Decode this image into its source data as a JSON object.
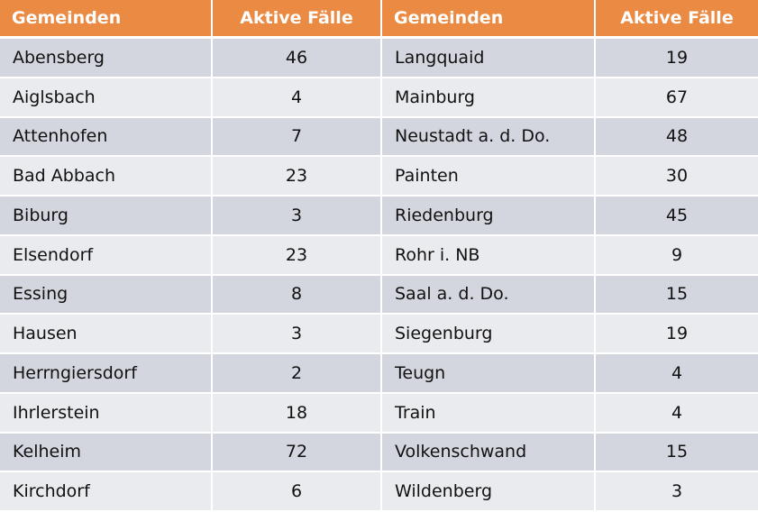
{
  "header": {
    "col1": "Gemeinden",
    "col2": "Aktive Fälle",
    "col3": "Gemeinden",
    "col4": "Aktive Fälle"
  },
  "colors": {
    "header_bg": "#ea8a43",
    "row_odd": "#d4d6df",
    "row_even": "#eaebef"
  },
  "rows": [
    {
      "left_name": "Abensberg",
      "left_cases": "46",
      "right_name": "Langquaid",
      "right_cases": "19"
    },
    {
      "left_name": "Aiglsbach",
      "left_cases": "4",
      "right_name": "Mainburg",
      "right_cases": "67"
    },
    {
      "left_name": "Attenhofen",
      "left_cases": "7",
      "right_name": "Neustadt a. d. Do.",
      "right_cases": "48"
    },
    {
      "left_name": "Bad Abbach",
      "left_cases": "23",
      "right_name": "Painten",
      "right_cases": "30"
    },
    {
      "left_name": "Biburg",
      "left_cases": "3",
      "right_name": "Riedenburg",
      "right_cases": "45"
    },
    {
      "left_name": "Elsendorf",
      "left_cases": "23",
      "right_name": "Rohr i. NB",
      "right_cases": "9"
    },
    {
      "left_name": "Essing",
      "left_cases": "8",
      "right_name": "Saal a. d. Do.",
      "right_cases": "15"
    },
    {
      "left_name": "Hausen",
      "left_cases": "3",
      "right_name": "Siegenburg",
      "right_cases": "19"
    },
    {
      "left_name": "Herrngiersdorf",
      "left_cases": "2",
      "right_name": "Teugn",
      "right_cases": "4"
    },
    {
      "left_name": "Ihrlerstein",
      "left_cases": "18",
      "right_name": "Train",
      "right_cases": "4"
    },
    {
      "left_name": "Kelheim",
      "left_cases": "72",
      "right_name": "Volkenschwand",
      "right_cases": "15"
    },
    {
      "left_name": "Kirchdorf",
      "left_cases": "6",
      "right_name": "Wildenberg",
      "right_cases": "3"
    }
  ]
}
